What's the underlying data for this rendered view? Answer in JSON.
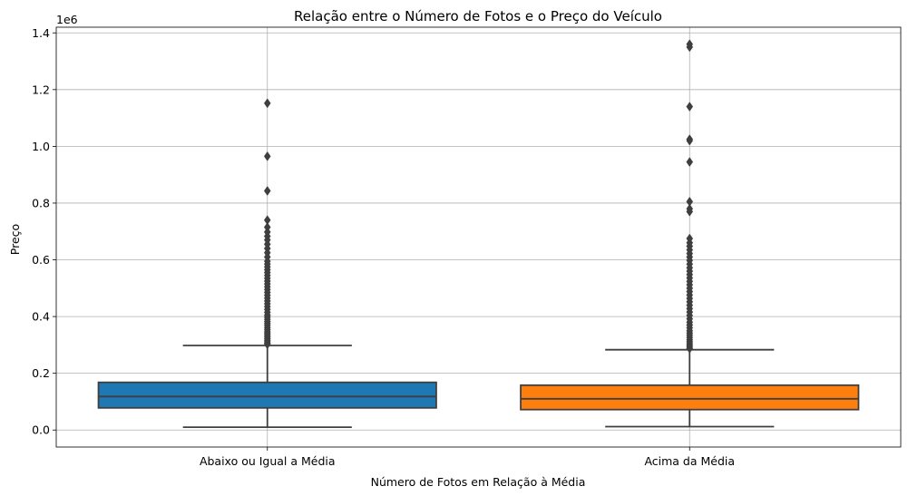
{
  "chart_data": {
    "type": "boxplot",
    "title": "Relação entre o Número de Fotos e o Preço do Veículo",
    "xlabel": "Número de Fotos em Relação à Média",
    "ylabel": "Preço",
    "y_offset_label": "1e6",
    "y_scale": 1000000,
    "ylim": [
      -60000,
      1420000
    ],
    "y_ticks": [
      0.0,
      0.2,
      0.4,
      0.6,
      0.8,
      1.0,
      1.2,
      1.4
    ],
    "y_tick_labels": [
      "0.0",
      "0.2",
      "0.4",
      "0.6",
      "0.8",
      "1.0",
      "1.2",
      "1.4"
    ],
    "grid": true,
    "categories": [
      "Abaixo ou Igual a Média",
      "Acima da Média"
    ],
    "boxes": [
      {
        "category": "Abaixo ou Igual a Média",
        "color": "#1f77b4",
        "whisker_low": 10000,
        "q1": 78000,
        "median": 118000,
        "q3": 168000,
        "whisker_high": 298000,
        "outliers": [
          1152000,
          965000,
          843000,
          740000,
          715000,
          698000,
          683000,
          670000,
          655000,
          640000,
          625000,
          610000,
          595000,
          585000,
          575000,
          565000,
          555000,
          545000,
          535000,
          525000,
          515000,
          505000,
          495000,
          485000,
          475000,
          465000,
          455000,
          445000,
          435000,
          425000,
          415000,
          405000,
          398000,
          390000,
          382000,
          375000,
          368000,
          360000,
          353000,
          346000,
          340000,
          334000,
          328000,
          322000,
          316000,
          311000,
          306000,
          302000
        ]
      },
      {
        "category": "Acima da Média",
        "color": "#ff7f0e",
        "whisker_low": 12000,
        "q1": 72000,
        "median": 110000,
        "q3": 158000,
        "whisker_high": 283000,
        "outliers": [
          1360000,
          1350000,
          1140000,
          1025000,
          1020000,
          945000,
          805000,
          780000,
          770000,
          675000,
          660000,
          648000,
          635000,
          622000,
          610000,
          598000,
          585000,
          572000,
          560000,
          548000,
          536000,
          524000,
          512000,
          500000,
          488000,
          476000,
          464000,
          452000,
          440000,
          428000,
          416000,
          404000,
          392000,
          380000,
          370000,
          360000,
          350000,
          342000,
          334000,
          326000,
          318000,
          311000,
          304000,
          298000,
          292000,
          287000
        ]
      }
    ]
  }
}
